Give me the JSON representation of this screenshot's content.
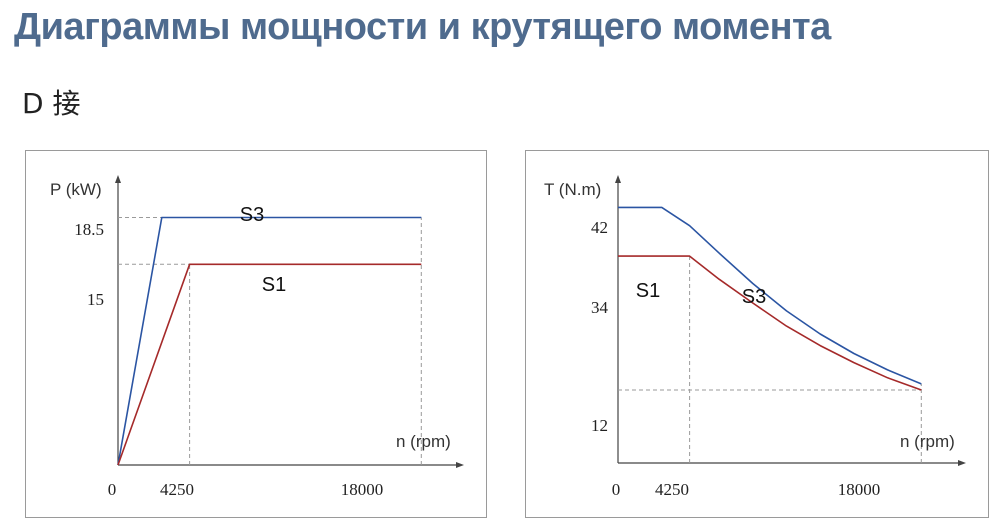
{
  "title": "Диаграммы мощности и крутящего момента",
  "subtitle": "D 接",
  "colors": {
    "title": "#4f6b8e",
    "S3": "#2b55a3",
    "S1": "#a52a2a",
    "guide": "#9a9a9a"
  },
  "chart_data": [
    {
      "type": "line",
      "ylabel": "P (kW)",
      "xlabel": "n (rpm)",
      "xlim": [
        0,
        20000
      ],
      "ylim": [
        0,
        21
      ],
      "x_ticks": [
        "0",
        "4250",
        "18000"
      ],
      "y_ticks": [
        "18.5",
        "15"
      ],
      "grid": false,
      "series": [
        {
          "name": "S3",
          "x": [
            0,
            2600,
            18000
          ],
          "y": [
            0,
            18.5,
            18.5
          ]
        },
        {
          "name": "S1",
          "x": [
            0,
            4250,
            18000
          ],
          "y": [
            0,
            15,
            15
          ]
        }
      ]
    },
    {
      "type": "line",
      "ylabel": "T (N.m)",
      "xlabel": "n (rpm)",
      "xlim": [
        0,
        20000
      ],
      "ylim": [
        0,
        47
      ],
      "x_ticks": [
        "0",
        "4250",
        "18000"
      ],
      "y_ticks": [
        "42",
        "34",
        "12"
      ],
      "grid": false,
      "series": [
        {
          "name": "S3",
          "x": [
            0,
            2600,
            4250,
            6000,
            8000,
            10000,
            12000,
            14000,
            16000,
            18000
          ],
          "y": [
            42,
            42,
            39,
            34.5,
            29.5,
            25,
            21.2,
            18,
            15.3,
            13
          ]
        },
        {
          "name": "S1",
          "x": [
            0,
            4250,
            6000,
            8000,
            10000,
            12000,
            14000,
            16000,
            18000
          ],
          "y": [
            34,
            34,
            30.2,
            26.3,
            22.5,
            19.3,
            16.5,
            14,
            12
          ]
        }
      ]
    }
  ]
}
